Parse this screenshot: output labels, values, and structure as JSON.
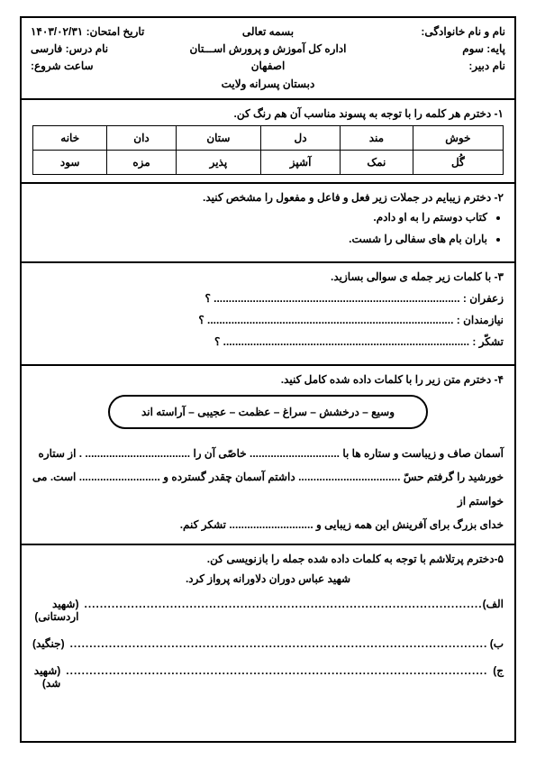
{
  "header": {
    "right": {
      "name_label": "نام و نام خانوادگی:",
      "grade_label": "پایه:",
      "grade_value": "سوم",
      "teacher_label": "نام دبیر:"
    },
    "center": {
      "bismillah": "بسمه تعالی",
      "org": "اداره کل آموزش و پرورش اســـتان اصفهان",
      "school": "دبستان پسرانه ولایت"
    },
    "left": {
      "date_label": "تاریخ امتحان:",
      "date_value": "۱۴۰۳/۰۲/۳۱",
      "subject_label": "نام درس:",
      "subject_value": "فارسی",
      "time_label": "ساعت شروع:"
    }
  },
  "q1": {
    "title": "۱- دخترم هر کلمه را با توجه به پسوند مناسب آن هم رنگ کن.",
    "row1": [
      "خوش",
      "مند",
      "دل",
      "ستان",
      "دان",
      "خانه"
    ],
    "row2": [
      "گُل",
      "نمک",
      "آشپز",
      "پذیر",
      "مزه",
      "سود"
    ]
  },
  "q2": {
    "title": "۲- دخترم زیبایم در جملات زیر فعل و فاعل و مفعول را مشخص کنید.",
    "items": [
      "کتاب دوستم را به او دادم.",
      "باران بام های سفالی را شست."
    ]
  },
  "q3": {
    "title": "۳- با کلمات زیر جمله ی سوالی بسازید.",
    "items": [
      {
        "label": "زعفران :",
        "dots": ".................................................................................. ؟"
      },
      {
        "label": "نیازمندان :",
        "dots": ".................................................................................. ؟"
      },
      {
        "label": "تشکّر :",
        "dots": ".................................................................................. ؟"
      }
    ]
  },
  "q4": {
    "title": "۴- دخترم متن زیر را با کلمات داده شده کامل کنید.",
    "wordbox": "وسیع – درخشش – سراغ – عظمت – عجیبی – آراسته اند",
    "paragraph1": "آسمان صاف و زیباست و ستاره ها با .............................. خاصّی آن را ................................... . از ستاره",
    "paragraph2": "خورشید را گرفتم حسّ .................................. داشتم آسمان چقدر گسترده و ........................... است. می خواستم از",
    "paragraph3": "خدای بزرگ برای آفرینش این همه زیبایی و ............................ تشکر کنم."
  },
  "q5": {
    "title": "۵-دخترم پرتلاشم با توجه به کلمات داده شده جمله را بازنویسی کن.",
    "sentence": "شهید عباس دوران دلاورانه پرواز کرد.",
    "options": [
      {
        "label": "الف)",
        "line": " ......................................................................................................",
        "hint": "(شهید اردستانی)"
      },
      {
        "label": "ب)",
        "line": " ...........................................................................................................",
        "hint": "(جنگید)"
      },
      {
        "label": "ج)",
        "line": " ............................................................................................................",
        "hint": "(شهید شد)"
      }
    ]
  }
}
